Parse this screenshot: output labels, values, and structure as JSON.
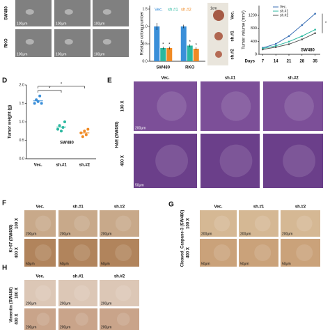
{
  "chart_data": [
    {
      "type": "bar",
      "ylabel": "Relative colony number",
      "categories": [
        "SW480",
        "RKO"
      ],
      "series": [
        {
          "name": "Vec.",
          "color": "#3a8fd9",
          "values": [
            1.0,
            1.0
          ],
          "errors": [
            0.1,
            0.05
          ]
        },
        {
          "name": "sh.#1",
          "color": "#2bb8a0",
          "values": [
            0.38,
            0.45
          ],
          "errors": [
            0.04,
            0.04
          ]
        },
        {
          "name": "sh.#2",
          "color": "#f08a24",
          "values": [
            0.38,
            0.36
          ],
          "errors": [
            0.04,
            0.04
          ]
        }
      ],
      "ylim": [
        0,
        1.6
      ],
      "yticks": [
        {
          "value": 0,
          "label": "0.0"
        },
        0.5,
        {
          "value": 1,
          "label": "1.0"
        },
        1.5
      ],
      "annotation": "*"
    },
    {
      "type": "line",
      "ylabel": "Tumor volume (mm³)",
      "xlabel": "Days",
      "x": [
        7,
        14,
        21,
        28,
        35
      ],
      "xlim": [
        5,
        37
      ],
      "xticks": [
        7,
        14,
        21,
        28,
        35
      ],
      "ylim": [
        0,
        1500
      ],
      "yticks": [
        0,
        400,
        800,
        1200
      ],
      "annotation": "SW480",
      "marker": "*",
      "series": [
        {
          "name": "Vec.",
          "color": "#3a6fb5",
          "values": [
            200,
            320,
            560,
            900,
            1250
          ]
        },
        {
          "name": "sh.#1",
          "color": "#2bb8a0",
          "values": [
            180,
            260,
            390,
            560,
            760
          ]
        },
        {
          "name": "sh.#2",
          "color": "#555555",
          "values": [
            150,
            220,
            310,
            460,
            650
          ]
        }
      ]
    },
    {
      "type": "dot",
      "letter": "D",
      "ylabel": "Tumor weight (g)",
      "categories": [
        "Vec.",
        "sh.#1",
        "sh.#2"
      ],
      "group": "SW480",
      "colors": [
        "#3a8fd9",
        "#2bb8a0",
        "#f08a24"
      ],
      "points": [
        [
          1.5,
          1.6,
          1.55,
          1.7,
          1.5
        ],
        [
          0.8,
          0.9,
          0.75,
          0.85,
          1.0
        ],
        [
          0.7,
          0.6,
          0.75,
          0.65,
          0.8
        ]
      ],
      "means": [
        1.57,
        0.86,
        0.7
      ],
      "ylim": [
        0,
        2
      ],
      "yticks": [
        {
          "value": 0,
          "label": "0.0"
        },
        0.5,
        {
          "value": 1,
          "label": "1.0"
        },
        1.5,
        {
          "value": 2,
          "label": "2.0"
        }
      ],
      "annotation": "*"
    }
  ],
  "panels": {
    "a": {
      "rows": [
        "SW480",
        "RKO"
      ],
      "scale": "100μm"
    },
    "photo": {
      "labels": [
        "Vec.",
        "sh.#1",
        "sh.#2"
      ],
      "scale": "1cm"
    },
    "e": {
      "letter": "E",
      "columns": [
        "Vec.",
        "sh.#1",
        "sh.#2"
      ],
      "rows": [
        "100 X",
        "400 X"
      ],
      "stain": "H&E (SW480)",
      "scales": [
        "200μm",
        "50μm"
      ]
    },
    "f": {
      "letter": "F",
      "columns": [
        "Vec.",
        "sh.#1",
        "sh.#2"
      ],
      "rows": [
        "100 X",
        "400 X"
      ],
      "stain": "Ki-67 (SW480)",
      "scales": [
        "200μm",
        "50μm"
      ]
    },
    "g": {
      "letter": "G",
      "columns": [
        "Vec.",
        "sh.#1",
        "sh.#2"
      ],
      "rows": [
        "100 X",
        "400 X"
      ],
      "stain": "Cleaved_Caspase-3 (SW480)",
      "scales": [
        "200μm",
        "50μm"
      ]
    },
    "h": {
      "letter": "H",
      "columns": [
        "Vec.",
        "sh.#1",
        "sh.#2"
      ],
      "rows": [
        "100 X",
        "400 X"
      ],
      "stain": "Vimentin (SW480)",
      "scales": [
        "200μm"
      ]
    }
  }
}
